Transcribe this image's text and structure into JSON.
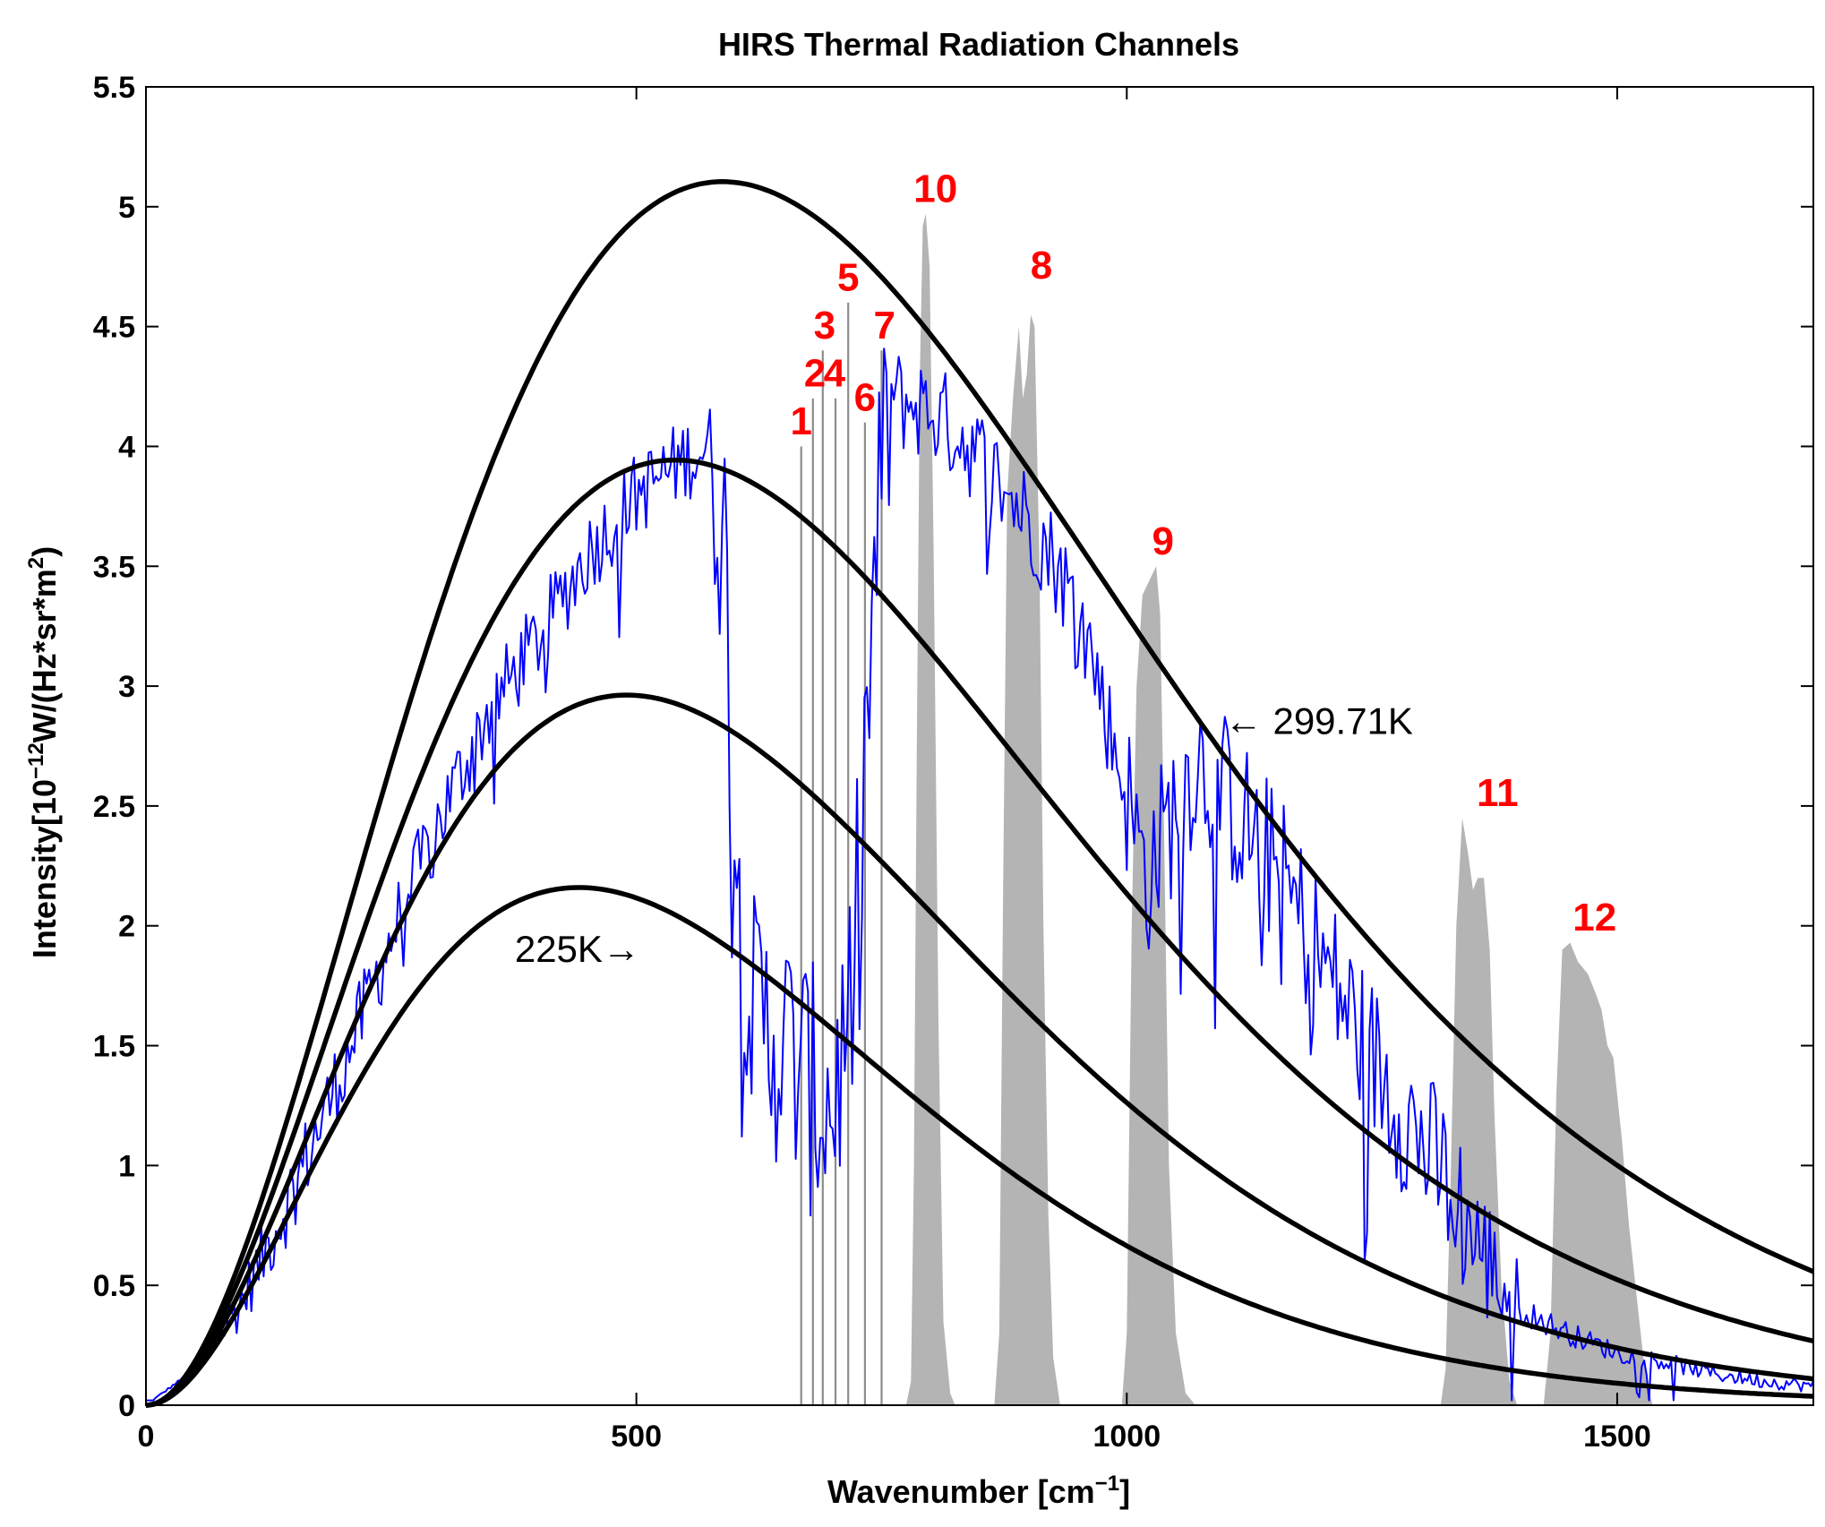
{
  "chart_data": {
    "type": "line",
    "title": "HIRS Thermal Radiation Channels",
    "xlabel": {
      "base": "Wavenumber [cm",
      "sup": "−1",
      "tail": "]"
    },
    "ylabel": {
      "base": "Intensity[10",
      "sup1": "−12",
      "mid": "W/(Hz*sr*m",
      "sup2": "2",
      "tail": ")"
    },
    "xlim": [
      0,
      1700
    ],
    "ylim": [
      0,
      5.5
    ],
    "x_ticks": [
      "0",
      "500",
      "1000",
      "1500"
    ],
    "x_tick_values": [
      0,
      500,
      1000,
      1500
    ],
    "y_ticks": [
      "0",
      "0.5",
      "1",
      "1.5",
      "2",
      "2.5",
      "3",
      "3.5",
      "4",
      "4.5",
      "5",
      "5.5"
    ],
    "y_tick_values": [
      0,
      0.5,
      1,
      1.5,
      2,
      2.5,
      3,
      3.5,
      4,
      4.5,
      5,
      5.5
    ],
    "grid": false,
    "colors": {
      "planck_curves": "#000000",
      "spectrum": "#0000ff",
      "channel_responses": "#b4b4b4",
      "narrow_channels": "#8c8c8c",
      "channel_labels": "#ff0000"
    },
    "planck_curves": [
      {
        "temperature_K": 299.71
      },
      {
        "temperature_K": 275
      },
      {
        "temperature_K": 250
      },
      {
        "temperature_K": 225
      }
    ],
    "curve_annotations": [
      {
        "text": "← 299.71K",
        "x": 1100,
        "y": 2.8
      },
      {
        "text": "225K→",
        "x": 440,
        "y": 1.85
      }
    ],
    "spectrum_anchors": [
      [
        0,
        0
      ],
      [
        50,
        0.15
      ],
      [
        100,
        0.45
      ],
      [
        150,
        0.9
      ],
      [
        200,
        1.4
      ],
      [
        250,
        1.95
      ],
      [
        300,
        2.45
      ],
      [
        350,
        2.9
      ],
      [
        400,
        3.2
      ],
      [
        450,
        3.55
      ],
      [
        500,
        3.8
      ],
      [
        550,
        3.95
      ],
      [
        575,
        4.0
      ],
      [
        590,
        3.6
      ],
      [
        600,
        2.4
      ],
      [
        610,
        2.0
      ],
      [
        620,
        1.6
      ],
      [
        640,
        1.55
      ],
      [
        660,
        1.45
      ],
      [
        680,
        1.3
      ],
      [
        700,
        1.25
      ],
      [
        720,
        1.7
      ],
      [
        740,
        3.2
      ],
      [
        750,
        3.9
      ],
      [
        760,
        4.2
      ],
      [
        800,
        4.15
      ],
      [
        830,
        4.05
      ],
      [
        850,
        3.95
      ],
      [
        900,
        3.7
      ],
      [
        930,
        3.5
      ],
      [
        960,
        3.2
      ],
      [
        990,
        2.7
      ],
      [
        1000,
        2.55
      ],
      [
        1020,
        2.2
      ],
      [
        1050,
        2.5
      ],
      [
        1070,
        2.7
      ],
      [
        1100,
        2.55
      ],
      [
        1150,
        2.25
      ],
      [
        1200,
        1.85
      ],
      [
        1250,
        1.45
      ],
      [
        1300,
        1.1
      ],
      [
        1330,
        0.9
      ],
      [
        1360,
        0.65
      ],
      [
        1400,
        0.4
      ],
      [
        1450,
        0.3
      ],
      [
        1500,
        0.22
      ],
      [
        1550,
        0.18
      ],
      [
        1600,
        0.13
      ],
      [
        1650,
        0.1
      ],
      [
        1700,
        0.08
      ]
    ],
    "narrow_channels": [
      {
        "label": "1",
        "x": 668,
        "top": 4.0
      },
      {
        "label": "2",
        "x": 680,
        "top": 4.2
      },
      {
        "label": "3",
        "x": 690,
        "top": 4.4
      },
      {
        "label": "4",
        "x": 703,
        "top": 4.2
      },
      {
        "label": "5",
        "x": 716,
        "top": 4.6
      },
      {
        "label": "6",
        "x": 733,
        "top": 4.1
      },
      {
        "label": "7",
        "x": 750,
        "top": 4.4
      }
    ],
    "broad_channels": [
      {
        "label": "10",
        "profile": [
          [
            775,
            0.0
          ],
          [
            780,
            0.1
          ],
          [
            783,
            1.0
          ],
          [
            786,
            2.8
          ],
          [
            789,
            4.3
          ],
          [
            792,
            4.92
          ],
          [
            795,
            4.97
          ],
          [
            799,
            4.75
          ],
          [
            803,
            3.6
          ],
          [
            808,
            1.6
          ],
          [
            813,
            0.35
          ],
          [
            820,
            0.05
          ],
          [
            825,
            0.0
          ]
        ]
      },
      {
        "label": "8",
        "profile": [
          [
            865,
            0.0
          ],
          [
            870,
            0.3
          ],
          [
            874,
            2.2
          ],
          [
            878,
            3.8
          ],
          [
            884,
            4.2
          ],
          [
            890,
            4.5
          ],
          [
            894,
            4.2
          ],
          [
            898,
            4.3
          ],
          [
            902,
            4.55
          ],
          [
            906,
            4.5
          ],
          [
            911,
            3.5
          ],
          [
            915,
            2.0
          ],
          [
            920,
            0.8
          ],
          [
            925,
            0.2
          ],
          [
            932,
            0.0
          ]
        ]
      },
      {
        "label": "9",
        "profile": [
          [
            995,
            0.0
          ],
          [
            1000,
            0.3
          ],
          [
            1005,
            2.0
          ],
          [
            1010,
            3.0
          ],
          [
            1016,
            3.38
          ],
          [
            1024,
            3.45
          ],
          [
            1030,
            3.5
          ],
          [
            1034,
            3.3
          ],
          [
            1038,
            2.4
          ],
          [
            1043,
            1.0
          ],
          [
            1050,
            0.3
          ],
          [
            1060,
            0.05
          ],
          [
            1070,
            0.0
          ]
        ]
      },
      {
        "label": "11",
        "profile": [
          [
            1320,
            0.0
          ],
          [
            1325,
            0.15
          ],
          [
            1330,
            0.9
          ],
          [
            1336,
            2.0
          ],
          [
            1342,
            2.45
          ],
          [
            1348,
            2.3
          ],
          [
            1353,
            2.15
          ],
          [
            1358,
            2.2
          ],
          [
            1364,
            2.2
          ],
          [
            1370,
            1.9
          ],
          [
            1375,
            1.2
          ],
          [
            1382,
            0.5
          ],
          [
            1390,
            0.1
          ],
          [
            1398,
            0.0
          ]
        ]
      },
      {
        "label": "12",
        "profile": [
          [
            1425,
            0.0
          ],
          [
            1432,
            0.3
          ],
          [
            1438,
            1.3
          ],
          [
            1444,
            1.9
          ],
          [
            1452,
            1.93
          ],
          [
            1460,
            1.85
          ],
          [
            1470,
            1.8
          ],
          [
            1478,
            1.72
          ],
          [
            1484,
            1.65
          ],
          [
            1490,
            1.5
          ],
          [
            1496,
            1.45
          ],
          [
            1505,
            1.1
          ],
          [
            1512,
            0.75
          ],
          [
            1520,
            0.45
          ],
          [
            1528,
            0.15
          ],
          [
            1536,
            0.0
          ]
        ]
      }
    ],
    "channel_labels": [
      {
        "text": "1",
        "x": 668,
        "y": 4.05
      },
      {
        "text": "2",
        "x": 682,
        "y": 4.25
      },
      {
        "text": "4",
        "x": 702,
        "y": 4.25
      },
      {
        "text": "3",
        "x": 692,
        "y": 4.45
      },
      {
        "text": "5",
        "x": 716,
        "y": 4.65
      },
      {
        "text": "6",
        "x": 733,
        "y": 4.15
      },
      {
        "text": "7",
        "x": 753,
        "y": 4.45
      },
      {
        "text": "10",
        "x": 805,
        "y": 5.02
      },
      {
        "text": "8",
        "x": 913,
        "y": 4.7
      },
      {
        "text": "9",
        "x": 1037,
        "y": 3.55
      },
      {
        "text": "11",
        "x": 1378,
        "y": 2.5
      },
      {
        "text": "12",
        "x": 1477,
        "y": 1.98
      }
    ]
  }
}
